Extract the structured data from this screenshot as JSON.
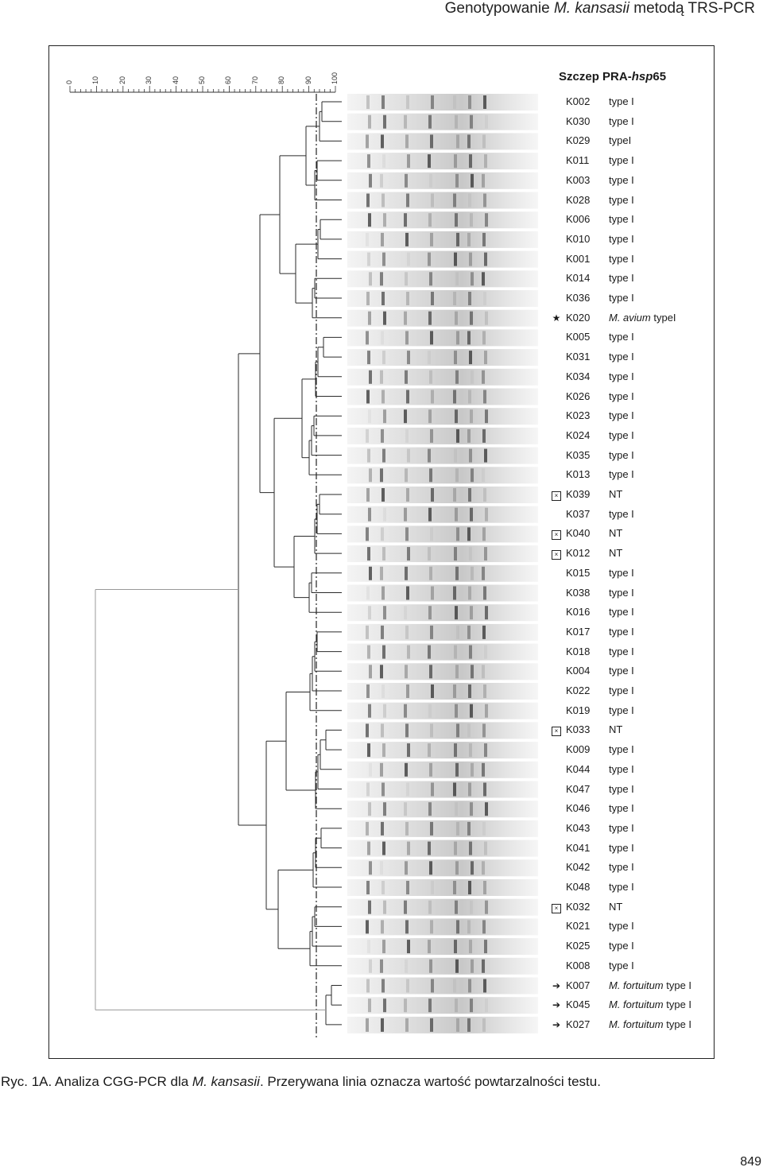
{
  "header": {
    "prefix": "Genotypowanie ",
    "species": "M. kansasii",
    "suffix": " metodą TRS-PCR"
  },
  "scale": {
    "labels": [
      "0",
      "10",
      "20",
      "30",
      "40",
      "50",
      "60",
      "70",
      "80",
      "90",
      "100"
    ]
  },
  "column_title": {
    "prefix": "Szczep PRA-",
    "gene": "hsp",
    "suffix": "65"
  },
  "strains": [
    {
      "id": "K002",
      "marker": "",
      "species": "",
      "type": "type I"
    },
    {
      "id": "K030",
      "marker": "",
      "species": "",
      "type": "type I"
    },
    {
      "id": "K029",
      "marker": "",
      "species": "",
      "type": "typeI"
    },
    {
      "id": "K011",
      "marker": "",
      "species": "",
      "type": "type I"
    },
    {
      "id": "K003",
      "marker": "",
      "species": "",
      "type": "type I"
    },
    {
      "id": "K028",
      "marker": "",
      "species": "",
      "type": "type I"
    },
    {
      "id": "K006",
      "marker": "",
      "species": "",
      "type": "type I"
    },
    {
      "id": "K010",
      "marker": "",
      "species": "",
      "type": "type I"
    },
    {
      "id": "K001",
      "marker": "",
      "species": "",
      "type": "type I"
    },
    {
      "id": "K014",
      "marker": "",
      "species": "",
      "type": "type I"
    },
    {
      "id": "K036",
      "marker": "",
      "species": "",
      "type": "type I"
    },
    {
      "id": "K020",
      "marker": "star",
      "species": "M. avium",
      "type": " typeI"
    },
    {
      "id": "K005",
      "marker": "",
      "species": "",
      "type": "type I"
    },
    {
      "id": "K031",
      "marker": "",
      "species": "",
      "type": "type I"
    },
    {
      "id": "K034",
      "marker": "",
      "species": "",
      "type": "type I"
    },
    {
      "id": "K026",
      "marker": "",
      "species": "",
      "type": "type I"
    },
    {
      "id": "K023",
      "marker": "",
      "species": "",
      "type": "type I"
    },
    {
      "id": "K024",
      "marker": "",
      "species": "",
      "type": "type I"
    },
    {
      "id": "K035",
      "marker": "",
      "species": "",
      "type": "type I"
    },
    {
      "id": "K013",
      "marker": "",
      "species": "",
      "type": "type I"
    },
    {
      "id": "K039",
      "marker": "box",
      "species": "",
      "type": "NT"
    },
    {
      "id": "K037",
      "marker": "",
      "species": "",
      "type": "type I"
    },
    {
      "id": "K040",
      "marker": "box",
      "species": "",
      "type": "NT"
    },
    {
      "id": "K012",
      "marker": "box",
      "species": "",
      "type": "NT"
    },
    {
      "id": "K015",
      "marker": "",
      "species": "",
      "type": "type I"
    },
    {
      "id": "K038",
      "marker": "",
      "species": "",
      "type": "type I"
    },
    {
      "id": "K016",
      "marker": "",
      "species": "",
      "type": "type I"
    },
    {
      "id": "K017",
      "marker": "",
      "species": "",
      "type": "type I"
    },
    {
      "id": "K018",
      "marker": "",
      "species": "",
      "type": "type I"
    },
    {
      "id": "K004",
      "marker": "",
      "species": "",
      "type": "type I"
    },
    {
      "id": "K022",
      "marker": "",
      "species": "",
      "type": "type I"
    },
    {
      "id": "K019",
      "marker": "",
      "species": "",
      "type": "type I"
    },
    {
      "id": "K033",
      "marker": "box",
      "species": "",
      "type": "NT"
    },
    {
      "id": "K009",
      "marker": "",
      "species": "",
      "type": "type I"
    },
    {
      "id": "K044",
      "marker": "",
      "species": "",
      "type": "type I"
    },
    {
      "id": "K047",
      "marker": "",
      "species": "",
      "type": "type I"
    },
    {
      "id": "K046",
      "marker": "",
      "species": "",
      "type": "type I"
    },
    {
      "id": "K043",
      "marker": "",
      "species": "",
      "type": "type I"
    },
    {
      "id": "K041",
      "marker": "",
      "species": "",
      "type": "type I"
    },
    {
      "id": "K042",
      "marker": "",
      "species": "",
      "type": "type I"
    },
    {
      "id": "K048",
      "marker": "",
      "species": "",
      "type": "type I"
    },
    {
      "id": "K032",
      "marker": "box",
      "species": "",
      "type": "NT"
    },
    {
      "id": "K021",
      "marker": "",
      "species": "",
      "type": "type I"
    },
    {
      "id": "K025",
      "marker": "",
      "species": "",
      "type": "type I"
    },
    {
      "id": "K008",
      "marker": "",
      "species": "",
      "type": "type I"
    },
    {
      "id": "K007",
      "marker": "arrow",
      "species": "M. fortuitum",
      "type": " type I"
    },
    {
      "id": "K045",
      "marker": "arrow",
      "species": "M. fortuitum",
      "type": " type I"
    },
    {
      "id": "K027",
      "marker": "arrow",
      "species": "M. fortuitum",
      "type": " type I"
    }
  ],
  "caption": {
    "prefix": "Ryc. 1A. Analiza CGG-PCR dla ",
    "species": "M. kansasii",
    "suffix": ". Przerywana linia oznacza wartość powtarzalności testu."
  },
  "page_number": "849",
  "colors": {
    "ink": "#1a1a1a",
    "frame": "#222222",
    "gel_band": "#2a2a2a"
  }
}
